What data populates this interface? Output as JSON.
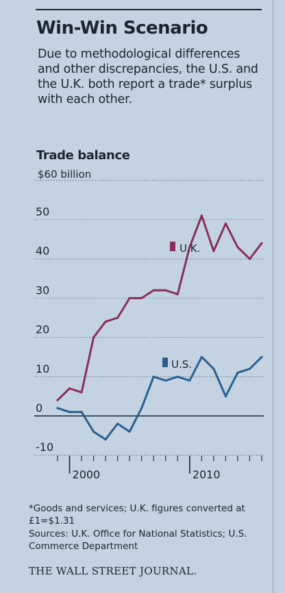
{
  "header": {
    "title": "Win-Win Scenario",
    "subtitle": "Due to methodological differences and other discrepancies, the U.S. and the U.K. both report a trade* surplus with each other."
  },
  "chart_data": {
    "type": "line",
    "title": "Trade balance",
    "unit_label": "$60 billion",
    "x_min": 1999,
    "x_max": 2016.6,
    "ylim": [
      -12,
      60
    ],
    "y_ticks": [
      -10,
      0,
      10,
      20,
      30,
      40,
      50,
      60
    ],
    "y_tick_labels": [
      "-10",
      "0",
      "10",
      "20",
      "30",
      "40",
      "50"
    ],
    "x_tick_labels": [
      {
        "year": 2000,
        "label": "2000"
      },
      {
        "year": 2010,
        "label": "2010"
      }
    ],
    "series": [
      {
        "name": "U.K.",
        "color": "#8a2d5c",
        "x": [
          1999,
          2000,
          2001,
          2002,
          2003,
          2004,
          2005,
          2006,
          2007,
          2008,
          2009,
          2010,
          2011,
          2012,
          2013,
          2014,
          2015,
          2016
        ],
        "y": [
          4,
          7,
          6,
          20,
          24,
          25,
          30,
          30,
          32,
          32,
          31,
          43,
          51,
          42,
          49,
          43,
          40,
          44
        ]
      },
      {
        "name": "U.S.",
        "color": "#2a5f8f",
        "x": [
          1999,
          2000,
          2001,
          2002,
          2003,
          2004,
          2005,
          2006,
          2007,
          2008,
          2009,
          2010,
          2011,
          2012,
          2013,
          2014,
          2015,
          2016
        ],
        "y": [
          2,
          1,
          1,
          -4,
          -6,
          -2,
          -4,
          2,
          10,
          9,
          10,
          9,
          15,
          12,
          5,
          11,
          12,
          15
        ]
      }
    ],
    "grid": true,
    "zero_line": true
  },
  "footer": {
    "footnote": "*Goods and services; U.K. figures converted at £1=$1.31",
    "sources": "Sources: U.K. Office for National Statistics; U.S. Commerce Department",
    "masthead": "THE WALL STREET JOURNAL."
  }
}
